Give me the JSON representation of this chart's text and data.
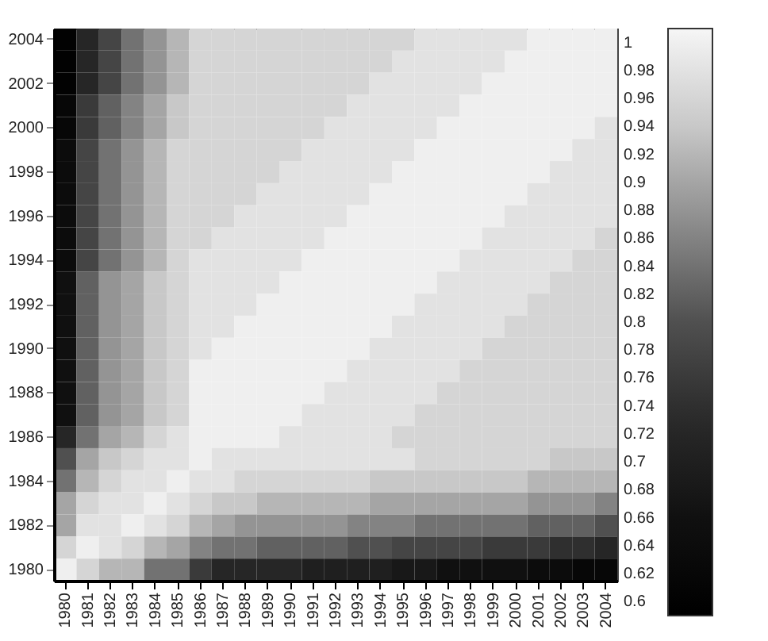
{
  "chart_data": {
    "type": "heatmap",
    "categories": [
      "1980",
      "1981",
      "1982",
      "1983",
      "1984",
      "1985",
      "1986",
      "1987",
      "1988",
      "1989",
      "1990",
      "1991",
      "1992",
      "1993",
      "1994",
      "1995",
      "1996",
      "1997",
      "1998",
      "1999",
      "2000",
      "2001",
      "2002",
      "2003",
      "2004"
    ],
    "y_categories": [
      "2004",
      null,
      "2002",
      null,
      "2000",
      null,
      "1998",
      null,
      "1996",
      null,
      "1994",
      null,
      "1992",
      null,
      "1990",
      null,
      "1988",
      null,
      "1986",
      null,
      "1984",
      null,
      "1982",
      null,
      "1980"
    ],
    "cells": [
      [
        0.6,
        0.72,
        0.78,
        0.84,
        0.88,
        0.92,
        0.96,
        0.96,
        0.96,
        0.96,
        0.96,
        0.96,
        0.96,
        0.96,
        0.96,
        0.96,
        0.98,
        0.98,
        0.98,
        0.98,
        0.98,
        1,
        1,
        1,
        1
      ],
      [
        0.6,
        0.72,
        0.78,
        0.84,
        0.88,
        0.92,
        0.96,
        0.96,
        0.96,
        0.96,
        0.96,
        0.96,
        0.96,
        0.96,
        0.96,
        0.98,
        0.98,
        0.98,
        0.98,
        0.98,
        1,
        1,
        1,
        1,
        1
      ],
      [
        0.6,
        0.72,
        0.78,
        0.84,
        0.88,
        0.92,
        0.96,
        0.96,
        0.96,
        0.96,
        0.96,
        0.96,
        0.96,
        0.96,
        0.98,
        0.98,
        0.98,
        0.98,
        0.98,
        1,
        1,
        1,
        1,
        1,
        1
      ],
      [
        0.62,
        0.76,
        0.82,
        0.86,
        0.9,
        0.94,
        0.96,
        0.96,
        0.96,
        0.96,
        0.96,
        0.96,
        0.96,
        0.98,
        0.98,
        0.98,
        0.98,
        0.98,
        1,
        1,
        1,
        1,
        1,
        1,
        1
      ],
      [
        0.62,
        0.76,
        0.82,
        0.86,
        0.9,
        0.94,
        0.96,
        0.96,
        0.96,
        0.96,
        0.96,
        0.96,
        0.98,
        0.98,
        0.98,
        0.98,
        0.98,
        1,
        1,
        1,
        1,
        1,
        1,
        1,
        0.98
      ],
      [
        0.64,
        0.78,
        0.84,
        0.88,
        0.92,
        0.96,
        0.96,
        0.96,
        0.96,
        0.96,
        0.96,
        0.98,
        0.98,
        0.98,
        0.98,
        0.98,
        1,
        1,
        1,
        1,
        1,
        1,
        1,
        0.98,
        0.98
      ],
      [
        0.64,
        0.78,
        0.84,
        0.88,
        0.92,
        0.96,
        0.96,
        0.96,
        0.96,
        0.96,
        0.98,
        0.98,
        0.98,
        0.98,
        0.98,
        1,
        1,
        1,
        1,
        1,
        1,
        1,
        0.98,
        0.98,
        0.98
      ],
      [
        0.64,
        0.78,
        0.84,
        0.88,
        0.92,
        0.96,
        0.96,
        0.96,
        0.96,
        0.98,
        0.98,
        0.98,
        0.98,
        0.98,
        1,
        1,
        1,
        1,
        1,
        1,
        1,
        0.98,
        0.98,
        0.98,
        0.98
      ],
      [
        0.64,
        0.78,
        0.84,
        0.88,
        0.92,
        0.96,
        0.96,
        0.96,
        0.98,
        0.98,
        0.98,
        0.98,
        0.98,
        1,
        1,
        1,
        1,
        1,
        1,
        1,
        0.98,
        0.98,
        0.98,
        0.98,
        0.98
      ],
      [
        0.64,
        0.78,
        0.84,
        0.88,
        0.92,
        0.96,
        0.96,
        0.98,
        0.98,
        0.98,
        0.98,
        0.98,
        1,
        1,
        1,
        1,
        1,
        1,
        1,
        0.98,
        0.98,
        0.98,
        0.98,
        0.98,
        0.96
      ],
      [
        0.64,
        0.78,
        0.84,
        0.88,
        0.92,
        0.96,
        0.98,
        0.98,
        0.98,
        0.98,
        0.98,
        1,
        1,
        1,
        1,
        1,
        1,
        1,
        0.98,
        0.98,
        0.98,
        0.98,
        0.98,
        0.96,
        0.96
      ],
      [
        0.66,
        0.82,
        0.88,
        0.9,
        0.94,
        0.96,
        0.98,
        0.98,
        0.98,
        0.98,
        1,
        1,
        1,
        1,
        1,
        1,
        1,
        0.98,
        0.98,
        0.98,
        0.98,
        0.98,
        0.96,
        0.96,
        0.96
      ],
      [
        0.66,
        0.82,
        0.88,
        0.9,
        0.94,
        0.96,
        0.98,
        0.98,
        0.98,
        1,
        1,
        1,
        1,
        1,
        1,
        1,
        0.98,
        0.98,
        0.98,
        0.98,
        0.98,
        0.96,
        0.96,
        0.96,
        0.96
      ],
      [
        0.66,
        0.82,
        0.88,
        0.9,
        0.94,
        0.96,
        0.98,
        0.98,
        1,
        1,
        1,
        1,
        1,
        1,
        1,
        0.98,
        0.98,
        0.98,
        0.98,
        0.98,
        0.96,
        0.96,
        0.96,
        0.96,
        0.96
      ],
      [
        0.66,
        0.82,
        0.88,
        0.9,
        0.94,
        0.96,
        0.98,
        1,
        1,
        1,
        1,
        1,
        1,
        1,
        0.98,
        0.98,
        0.98,
        0.98,
        0.98,
        0.96,
        0.96,
        0.96,
        0.96,
        0.96,
        0.96
      ],
      [
        0.66,
        0.82,
        0.88,
        0.9,
        0.94,
        0.96,
        1,
        1,
        1,
        1,
        1,
        1,
        1,
        0.98,
        0.98,
        0.98,
        0.98,
        0.98,
        0.96,
        0.96,
        0.96,
        0.96,
        0.96,
        0.96,
        0.96
      ],
      [
        0.66,
        0.82,
        0.88,
        0.9,
        0.94,
        0.96,
        1,
        1,
        1,
        1,
        1,
        1,
        0.98,
        0.98,
        0.98,
        0.98,
        0.98,
        0.96,
        0.96,
        0.96,
        0.96,
        0.96,
        0.96,
        0.96,
        0.96
      ],
      [
        0.66,
        0.82,
        0.88,
        0.9,
        0.94,
        0.96,
        1,
        1,
        1,
        1,
        1,
        0.98,
        0.98,
        0.98,
        0.98,
        0.98,
        0.96,
        0.96,
        0.96,
        0.96,
        0.96,
        0.96,
        0.96,
        0.96,
        0.96
      ],
      [
        0.72,
        0.84,
        0.9,
        0.92,
        0.96,
        0.98,
        1,
        1,
        1,
        1,
        0.98,
        0.98,
        0.98,
        0.98,
        0.98,
        0.96,
        0.96,
        0.96,
        0.96,
        0.96,
        0.96,
        0.96,
        0.96,
        0.96,
        0.96
      ],
      [
        0.8,
        0.9,
        0.94,
        0.96,
        0.98,
        0.98,
        1,
        0.98,
        0.98,
        0.98,
        0.98,
        0.98,
        0.98,
        0.98,
        0.98,
        0.98,
        0.96,
        0.96,
        0.96,
        0.96,
        0.96,
        0.96,
        0.94,
        0.94,
        0.94
      ],
      [
        0.84,
        0.92,
        0.96,
        0.98,
        0.98,
        1,
        0.98,
        0.98,
        0.96,
        0.96,
        0.96,
        0.96,
        0.96,
        0.96,
        0.94,
        0.94,
        0.94,
        0.94,
        0.94,
        0.94,
        0.94,
        0.92,
        0.92,
        0.92,
        0.92
      ],
      [
        0.9,
        0.96,
        0.98,
        0.98,
        1,
        0.98,
        0.96,
        0.94,
        0.94,
        0.92,
        0.92,
        0.92,
        0.92,
        0.92,
        0.9,
        0.9,
        0.9,
        0.9,
        0.9,
        0.9,
        0.9,
        0.88,
        0.88,
        0.88,
        0.86
      ],
      [
        0.9,
        0.98,
        0.98,
        1,
        0.98,
        0.96,
        0.92,
        0.9,
        0.88,
        0.88,
        0.88,
        0.88,
        0.88,
        0.86,
        0.86,
        0.86,
        0.84,
        0.84,
        0.84,
        0.84,
        0.84,
        0.82,
        0.82,
        0.82,
        0.8
      ],
      [
        0.96,
        1,
        0.98,
        0.96,
        0.92,
        0.9,
        0.86,
        0.84,
        0.84,
        0.82,
        0.82,
        0.82,
        0.82,
        0.8,
        0.8,
        0.78,
        0.78,
        0.78,
        0.78,
        0.76,
        0.76,
        0.76,
        0.74,
        0.74,
        0.72
      ],
      [
        1,
        0.96,
        0.92,
        0.92,
        0.84,
        0.84,
        0.76,
        0.72,
        0.72,
        0.72,
        0.72,
        0.7,
        0.7,
        0.7,
        0.7,
        0.68,
        0.68,
        0.66,
        0.66,
        0.66,
        0.66,
        0.64,
        0.64,
        0.62,
        0.62
      ]
    ],
    "clim": [
      0.59,
      1.01
    ],
    "cticks": [
      0.6,
      0.62,
      0.64,
      0.66,
      0.68,
      0.7,
      0.72,
      0.74,
      0.76,
      0.78,
      0.8,
      0.82,
      0.84,
      0.86,
      0.88,
      0.9,
      0.92,
      0.94,
      0.96,
      0.98,
      1
    ]
  }
}
